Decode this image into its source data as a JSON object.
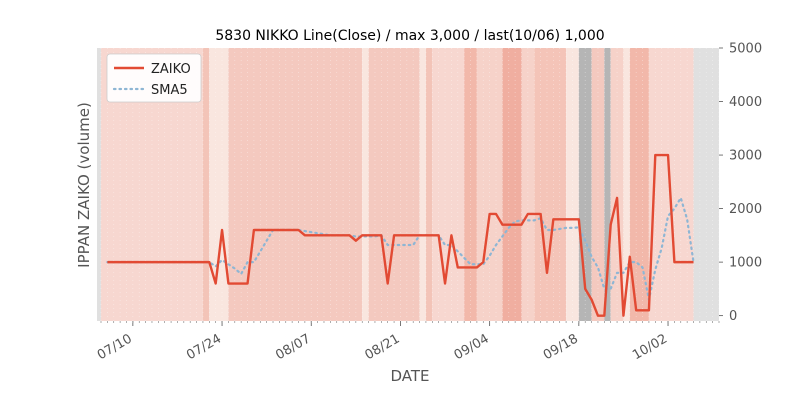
{
  "chart_data": {
    "type": "line",
    "title": "5830 NIKKO Line(Close) / max 3,000 / last(10/06) 1,000",
    "xlabel": "DATE",
    "ylabel": "IPPAN ZAIKO (volume)",
    "ylim": [
      -100,
      5000
    ],
    "yticks": [
      "0",
      "1000",
      "2000",
      "3000",
      "4000",
      "5000"
    ],
    "y_axis_side": "right",
    "xlim": [
      "2025-07-05",
      "2025-10-10"
    ],
    "xticks": [
      "07/10",
      "07/24",
      "08/07",
      "08/21",
      "09/04",
      "09/18",
      "10/02"
    ],
    "grid": false,
    "legend_position": "upper-left",
    "series": [
      {
        "name": "ZAIKO",
        "color": "#e24a33",
        "style": "solid",
        "points": [
          [
            "2025-07-06",
            1000
          ],
          [
            "2025-07-07",
            1000
          ],
          [
            "2025-07-08",
            1000
          ],
          [
            "2025-07-09",
            1000
          ],
          [
            "2025-07-10",
            1000
          ],
          [
            "2025-07-11",
            1000
          ],
          [
            "2025-07-12",
            1000
          ],
          [
            "2025-07-13",
            1000
          ],
          [
            "2025-07-14",
            1000
          ],
          [
            "2025-07-15",
            1000
          ],
          [
            "2025-07-16",
            1000
          ],
          [
            "2025-07-17",
            1000
          ],
          [
            "2025-07-18",
            1000
          ],
          [
            "2025-07-19",
            1000
          ],
          [
            "2025-07-20",
            1000
          ],
          [
            "2025-07-21",
            1000
          ],
          [
            "2025-07-22",
            1000
          ],
          [
            "2025-07-23",
            600
          ],
          [
            "2025-07-24",
            1600
          ],
          [
            "2025-07-25",
            600
          ],
          [
            "2025-07-26",
            600
          ],
          [
            "2025-07-27",
            600
          ],
          [
            "2025-07-28",
            600
          ],
          [
            "2025-07-29",
            1600
          ],
          [
            "2025-07-30",
            1600
          ],
          [
            "2025-07-31",
            1600
          ],
          [
            "2025-08-01",
            1600
          ],
          [
            "2025-08-02",
            1600
          ],
          [
            "2025-08-03",
            1600
          ],
          [
            "2025-08-04",
            1600
          ],
          [
            "2025-08-05",
            1600
          ],
          [
            "2025-08-06",
            1500
          ],
          [
            "2025-08-07",
            1500
          ],
          [
            "2025-08-08",
            1500
          ],
          [
            "2025-08-09",
            1500
          ],
          [
            "2025-08-10",
            1500
          ],
          [
            "2025-08-11",
            1500
          ],
          [
            "2025-08-12",
            1500
          ],
          [
            "2025-08-13",
            1500
          ],
          [
            "2025-08-14",
            1400
          ],
          [
            "2025-08-15",
            1500
          ],
          [
            "2025-08-16",
            1500
          ],
          [
            "2025-08-17",
            1500
          ],
          [
            "2025-08-18",
            1500
          ],
          [
            "2025-08-19",
            600
          ],
          [
            "2025-08-20",
            1500
          ],
          [
            "2025-08-21",
            1500
          ],
          [
            "2025-08-22",
            1500
          ],
          [
            "2025-08-23",
            1500
          ],
          [
            "2025-08-24",
            1500
          ],
          [
            "2025-08-25",
            1500
          ],
          [
            "2025-08-26",
            1500
          ],
          [
            "2025-08-27",
            1500
          ],
          [
            "2025-08-28",
            600
          ],
          [
            "2025-08-29",
            1500
          ],
          [
            "2025-08-30",
            900
          ],
          [
            "2025-08-31",
            900
          ],
          [
            "2025-09-01",
            900
          ],
          [
            "2025-09-02",
            900
          ],
          [
            "2025-09-03",
            1000
          ],
          [
            "2025-09-04",
            1900
          ],
          [
            "2025-09-05",
            1900
          ],
          [
            "2025-09-06",
            1700
          ],
          [
            "2025-09-07",
            1700
          ],
          [
            "2025-09-08",
            1700
          ],
          [
            "2025-09-09",
            1700
          ],
          [
            "2025-09-10",
            1900
          ],
          [
            "2025-09-11",
            1900
          ],
          [
            "2025-09-12",
            1900
          ],
          [
            "2025-09-13",
            800
          ],
          [
            "2025-09-14",
            1800
          ],
          [
            "2025-09-15",
            1800
          ],
          [
            "2025-09-16",
            1800
          ],
          [
            "2025-09-17",
            1800
          ],
          [
            "2025-09-18",
            1800
          ],
          [
            "2025-09-19",
            500
          ],
          [
            "2025-09-20",
            300
          ],
          [
            "2025-09-21",
            0
          ],
          [
            "2025-09-22",
            0
          ],
          [
            "2025-09-23",
            1700
          ],
          [
            "2025-09-24",
            2200
          ],
          [
            "2025-09-25",
            0
          ],
          [
            "2025-09-26",
            1100
          ],
          [
            "2025-09-27",
            100
          ],
          [
            "2025-09-28",
            100
          ],
          [
            "2025-09-29",
            100
          ],
          [
            "2025-09-30",
            3000
          ],
          [
            "2025-10-01",
            3000
          ],
          [
            "2025-10-02",
            3000
          ],
          [
            "2025-10-03",
            1000
          ],
          [
            "2025-10-04",
            1000
          ],
          [
            "2025-10-05",
            1000
          ],
          [
            "2025-10-06",
            1000
          ]
        ]
      },
      {
        "name": "SMA5",
        "color": "#8eb6d4",
        "style": "dotted",
        "points": [
          [
            "2025-07-06",
            1000
          ],
          [
            "2025-07-10",
            1000
          ],
          [
            "2025-07-15",
            1000
          ],
          [
            "2025-07-20",
            1000
          ],
          [
            "2025-07-22",
            1000
          ],
          [
            "2025-07-23",
            920
          ],
          [
            "2025-07-24",
            1040
          ],
          [
            "2025-07-25",
            960
          ],
          [
            "2025-07-26",
            880
          ],
          [
            "2025-07-27",
            780
          ],
          [
            "2025-07-28",
            1000
          ],
          [
            "2025-07-29",
            1000
          ],
          [
            "2025-07-30",
            1200
          ],
          [
            "2025-07-31",
            1400
          ],
          [
            "2025-08-01",
            1600
          ],
          [
            "2025-08-02",
            1600
          ],
          [
            "2025-08-03",
            1600
          ],
          [
            "2025-08-04",
            1600
          ],
          [
            "2025-08-05",
            1600
          ],
          [
            "2025-08-06",
            1580
          ],
          [
            "2025-08-07",
            1560
          ],
          [
            "2025-08-08",
            1540
          ],
          [
            "2025-08-09",
            1520
          ],
          [
            "2025-08-10",
            1500
          ],
          [
            "2025-08-11",
            1500
          ],
          [
            "2025-08-12",
            1500
          ],
          [
            "2025-08-13",
            1500
          ],
          [
            "2025-08-14",
            1480
          ],
          [
            "2025-08-15",
            1480
          ],
          [
            "2025-08-16",
            1480
          ],
          [
            "2025-08-17",
            1480
          ],
          [
            "2025-08-18",
            1500
          ],
          [
            "2025-08-19",
            1320
          ],
          [
            "2025-08-20",
            1320
          ],
          [
            "2025-08-21",
            1320
          ],
          [
            "2025-08-22",
            1320
          ],
          [
            "2025-08-23",
            1320
          ],
          [
            "2025-08-24",
            1500
          ],
          [
            "2025-08-25",
            1500
          ],
          [
            "2025-08-26",
            1500
          ],
          [
            "2025-08-27",
            1500
          ],
          [
            "2025-08-28",
            1320
          ],
          [
            "2025-08-29",
            1320
          ],
          [
            "2025-08-30",
            1200
          ],
          [
            "2025-08-31",
            1080
          ],
          [
            "2025-09-01",
            960
          ],
          [
            "2025-09-02",
            960
          ],
          [
            "2025-09-03",
            960
          ],
          [
            "2025-09-04",
            1120
          ],
          [
            "2025-09-05",
            1320
          ],
          [
            "2025-09-06",
            1480
          ],
          [
            "2025-09-07",
            1640
          ],
          [
            "2025-09-08",
            1760
          ],
          [
            "2025-09-09",
            1780
          ],
          [
            "2025-09-10",
            1780
          ],
          [
            "2025-09-11",
            1780
          ],
          [
            "2025-09-12",
            1820
          ],
          [
            "2025-09-13",
            1600
          ],
          [
            "2025-09-14",
            1600
          ],
          [
            "2025-09-15",
            1620
          ],
          [
            "2025-09-16",
            1640
          ],
          [
            "2025-09-17",
            1640
          ],
          [
            "2025-09-18",
            1650
          ],
          [
            "2025-09-19",
            1400
          ],
          [
            "2025-09-20",
            1100
          ],
          [
            "2025-09-21",
            900
          ],
          [
            "2025-09-22",
            500
          ],
          [
            "2025-09-23",
            500
          ],
          [
            "2025-09-24",
            800
          ],
          [
            "2025-09-25",
            800
          ],
          [
            "2025-09-26",
            1000
          ],
          [
            "2025-09-27",
            1000
          ],
          [
            "2025-09-28",
            900
          ],
          [
            "2025-09-29",
            300
          ],
          [
            "2025-09-30",
            860
          ],
          [
            "2025-10-01",
            1260
          ],
          [
            "2025-10-02",
            1860
          ],
          [
            "2025-10-03",
            2000
          ],
          [
            "2025-10-04",
            2200
          ],
          [
            "2025-10-05",
            1800
          ],
          [
            "2025-10-06",
            1000
          ]
        ]
      }
    ],
    "background_bands": [
      {
        "from": "2025-07-04",
        "to": "2025-07-05",
        "color": "#e0e0e0"
      },
      {
        "from": "2025-07-05",
        "to": "2025-07-21",
        "color": "#f7d7d0"
      },
      {
        "from": "2025-07-21",
        "to": "2025-07-22",
        "color": "#f3c4b8"
      },
      {
        "from": "2025-07-22",
        "to": "2025-07-25",
        "color": "#f9e6df"
      },
      {
        "from": "2025-07-25",
        "to": "2025-08-15",
        "color": "#f4c9bf"
      },
      {
        "from": "2025-08-15",
        "to": "2025-08-16",
        "color": "#f9e6df"
      },
      {
        "from": "2025-08-16",
        "to": "2025-08-24",
        "color": "#f4c9bf"
      },
      {
        "from": "2025-08-24",
        "to": "2025-08-25",
        "color": "#f9e6df"
      },
      {
        "from": "2025-08-25",
        "to": "2025-08-26",
        "color": "#f3c4b8"
      },
      {
        "from": "2025-08-26",
        "to": "2025-08-31",
        "color": "#f7d7d0"
      },
      {
        "from": "2025-08-31",
        "to": "2025-09-02",
        "color": "#f2b8aa"
      },
      {
        "from": "2025-09-02",
        "to": "2025-09-06",
        "color": "#f6d2c9"
      },
      {
        "from": "2025-09-06",
        "to": "2025-09-09",
        "color": "#f0aea0"
      },
      {
        "from": "2025-09-09",
        "to": "2025-09-11",
        "color": "#f6d2c9"
      },
      {
        "from": "2025-09-11",
        "to": "2025-09-16",
        "color": "#f4c4b8"
      },
      {
        "from": "2025-09-16",
        "to": "2025-09-18",
        "color": "#f9e6df"
      },
      {
        "from": "2025-09-18",
        "to": "2025-09-20",
        "color": "#b5b5b5"
      },
      {
        "from": "2025-09-20",
        "to": "2025-09-22",
        "color": "#f4c9bf"
      },
      {
        "from": "2025-09-22",
        "to": "2025-09-23",
        "color": "#b5b5b5"
      },
      {
        "from": "2025-09-23",
        "to": "2025-09-25",
        "color": "#f6d2c9"
      },
      {
        "from": "2025-09-25",
        "to": "2025-09-26",
        "color": "#f9e6df"
      },
      {
        "from": "2025-09-26",
        "to": "2025-09-29",
        "color": "#f2b8aa"
      },
      {
        "from": "2025-09-29",
        "to": "2025-10-06",
        "color": "#f7d7d0"
      },
      {
        "from": "2025-10-06",
        "to": "2025-10-10",
        "color": "#e0e0e0"
      }
    ]
  }
}
